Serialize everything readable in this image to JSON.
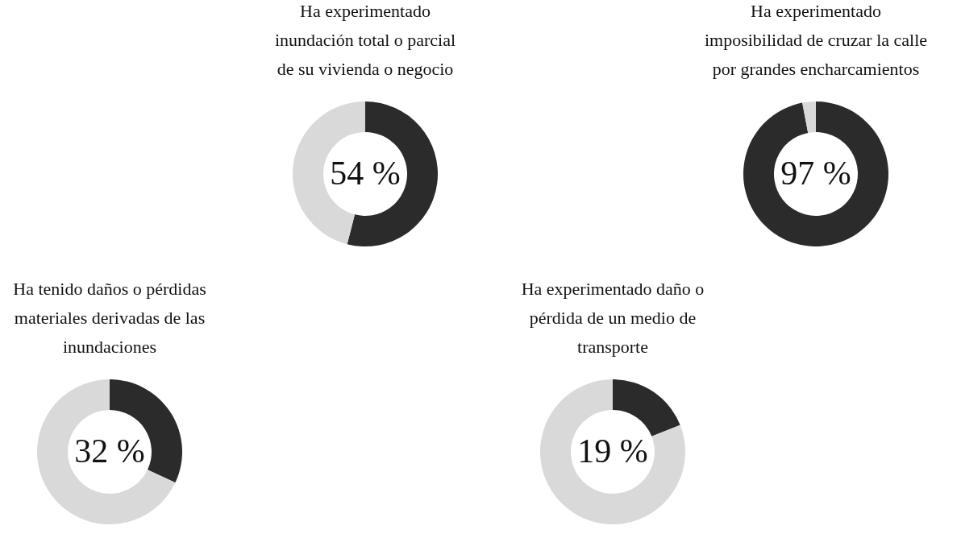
{
  "chart_data": [
    {
      "type": "donut",
      "title": "Ha experimentado\ninundación total o parcial\nde su vivienda o negocio",
      "categories": [
        null,
        null
      ],
      "values": [
        54,
        46
      ],
      "colors": [
        "#2b2b2b",
        "#d9d9d9"
      ],
      "annotations": [
        "54 %"
      ]
    },
    {
      "type": "donut",
      "title": "Ha experimentado\nimposibilidad de cruzar la calle\npor grandes encharcamientos",
      "categories": [
        null,
        null
      ],
      "values": [
        97,
        3
      ],
      "colors": [
        "#2b2b2b",
        "#d9d9d9"
      ],
      "annotations": [
        "97 %"
      ]
    },
    {
      "type": "donut",
      "title": "Ha tenido daños o pérdidas\nmateriales derivadas de las\ninundaciones",
      "categories": [
        null,
        null
      ],
      "values": [
        32,
        68
      ],
      "colors": [
        "#2b2b2b",
        "#d9d9d9"
      ],
      "annotations": [
        "32 %"
      ]
    },
    {
      "type": "donut",
      "title": "Ha experimentado daño o\npérdida de un medio de\ntransporte",
      "categories": [
        null,
        null
      ],
      "values": [
        19,
        81
      ],
      "colors": [
        "#2b2b2b",
        "#d9d9d9"
      ],
      "annotations": [
        "19 %"
      ]
    }
  ]
}
